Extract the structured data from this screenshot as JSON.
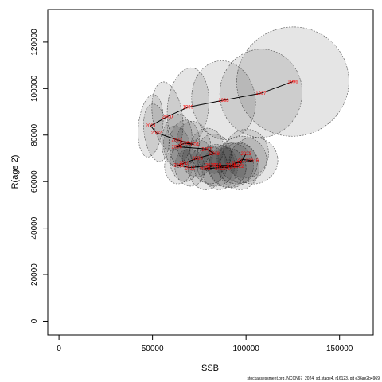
{
  "chart_data": {
    "type": "scatter",
    "title": "",
    "xlabel": "SSB",
    "ylabel": "R(age 2)",
    "xlim": [
      -6000,
      168000
    ],
    "ylim": [
      -6000,
      134000
    ],
    "xticks": [
      0,
      50000,
      100000,
      150000
    ],
    "yticks": [
      0,
      20000,
      40000,
      60000,
      80000,
      100000,
      120000
    ],
    "grid": false,
    "footer": "stockassessment.org, NCCN67_2024_sd.stage4, r16123, git e36ae2b4969",
    "points": [
      {
        "label": "1996",
        "x": 125000,
        "y": 103000,
        "rx": 30000,
        "ry": 23500
      },
      {
        "label": "1997",
        "x": 108000,
        "y": 98000,
        "rx": 22000,
        "ry": 19000
      },
      {
        "label": "1998",
        "x": 88000,
        "y": 95000,
        "rx": 17000,
        "ry": 17000
      },
      {
        "label": "1999",
        "x": 69000,
        "y": 92000,
        "rx": 11000,
        "ry": 17000
      },
      {
        "label": "2000",
        "x": 58000,
        "y": 88000,
        "rx": 8000,
        "ry": 15000
      },
      {
        "label": "2001",
        "x": 49000,
        "y": 84000,
        "rx": 6500,
        "ry": 13500
      },
      {
        "label": "2002",
        "x": 52000,
        "y": 81000,
        "rx": 6500,
        "ry": 12500
      },
      {
        "label": "2003",
        "x": 63000,
        "y": 78000,
        "rx": 8000,
        "ry": 11000
      },
      {
        "label": "2004",
        "x": 72000,
        "y": 76000,
        "rx": 9000,
        "ry": 10000
      },
      {
        "label": "2005",
        "x": 67000,
        "y": 76500,
        "rx": 8000,
        "ry": 10000
      },
      {
        "label": "2006",
        "x": 63000,
        "y": 75000,
        "rx": 7000,
        "ry": 9000
      },
      {
        "label": "2007",
        "x": 79000,
        "y": 74000,
        "rx": 9000,
        "ry": 9000
      },
      {
        "label": "2008",
        "x": 83000,
        "y": 72000,
        "rx": 9000,
        "ry": 8500
      },
      {
        "label": "2009",
        "x": 74000,
        "y": 70000,
        "rx": 8000,
        "ry": 8000
      },
      {
        "label": "2010",
        "x": 67000,
        "y": 68000,
        "rx": 7500,
        "ry": 8000
      },
      {
        "label": "2011",
        "x": 64000,
        "y": 67000,
        "rx": 7500,
        "ry": 8000
      },
      {
        "label": "2012",
        "x": 70000,
        "y": 66000,
        "rx": 8000,
        "ry": 8000
      },
      {
        "label": "2013",
        "x": 81000,
        "y": 67000,
        "rx": 9000,
        "ry": 8000
      },
      {
        "label": "2014",
        "x": 90000,
        "y": 66000,
        "rx": 10000,
        "ry": 8500
      },
      {
        "label": "2015",
        "x": 95000,
        "y": 68000,
        "rx": 11000,
        "ry": 9000
      },
      {
        "label": "2016",
        "x": 104000,
        "y": 69000,
        "rx": 13000,
        "ry": 10000
      },
      {
        "label": "2017",
        "x": 98000,
        "y": 69500,
        "rx": 13000,
        "ry": 10000
      },
      {
        "label": "2018",
        "x": 92000,
        "y": 67000,
        "rx": 12000,
        "ry": 9500
      },
      {
        "label": "2019",
        "x": 84000,
        "y": 67000,
        "rx": 10000,
        "ry": 9000
      },
      {
        "label": "2020",
        "x": 78000,
        "y": 65500,
        "rx": 9000,
        "ry": 9000
      },
      {
        "label": "2021",
        "x": 86000,
        "y": 66000,
        "rx": 9500,
        "ry": 9500
      },
      {
        "label": "2022",
        "x": 96000,
        "y": 66500,
        "rx": 11000,
        "ry": 10000
      },
      {
        "label": "2023",
        "x": 100000,
        "y": 72000,
        "rx": 12000,
        "ry": 10500
      }
    ]
  }
}
